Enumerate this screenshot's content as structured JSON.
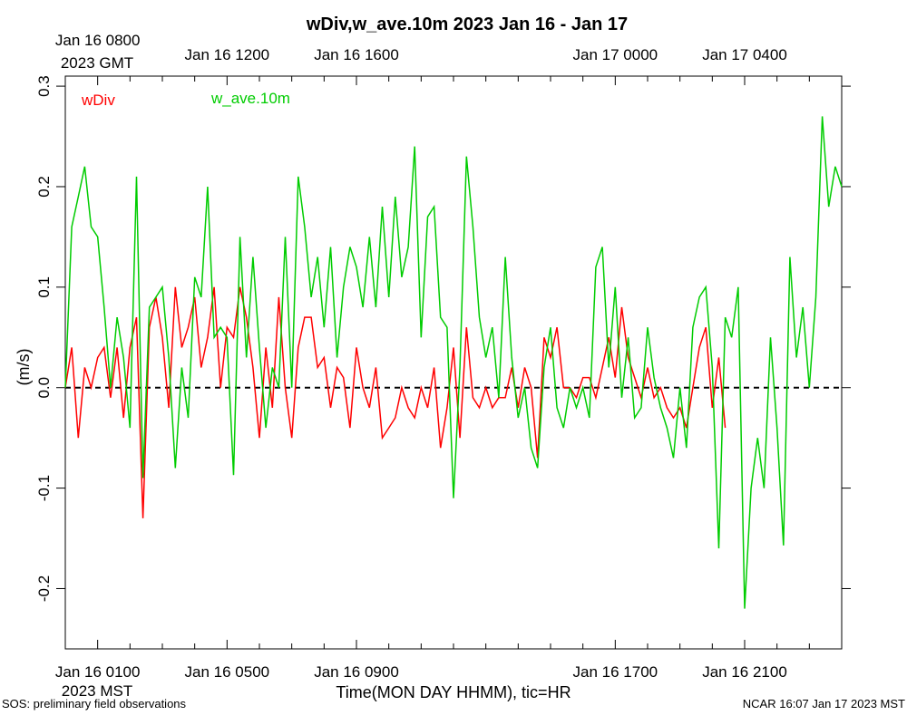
{
  "chart_data": {
    "type": "line",
    "title": "wDiv,w_ave.10m 2023 Jan 16 - Jan 17",
    "x_label": "Time(MON DAY HHMM), tic=HR",
    "y_label": "(m/s)",
    "x_note": "2023 MST",
    "x2_note": "2023 GMT",
    "footer_left": "SOS: preliminary field observations",
    "footer_right": "NCAR 16:07 Jan 17 2023 MST",
    "xlim": [
      0,
      24
    ],
    "ylim": [
      -0.26,
      0.31
    ],
    "reference_line": 0,
    "xticks": [
      {
        "value": 1,
        "label": "Jan 16 0100"
      },
      {
        "value": 5,
        "label": "Jan 16 0500"
      },
      {
        "value": 9,
        "label": "Jan 16 0900"
      },
      {
        "value": 17,
        "label": "Jan 16 1700"
      },
      {
        "value": 21,
        "label": "Jan 16 2100"
      }
    ],
    "x2ticks": [
      {
        "value": 1,
        "label": "Jan 16 0800"
      },
      {
        "value": 5,
        "label": "Jan 16 1200"
      },
      {
        "value": 9,
        "label": "Jan 16 1600"
      },
      {
        "value": 17,
        "label": "Jan 17 0000"
      },
      {
        "value": 21,
        "label": "Jan 17 0400"
      }
    ],
    "xminor_ticks": [
      2,
      3,
      4,
      6,
      7,
      8,
      10,
      11,
      12,
      13,
      14,
      15,
      16,
      18,
      19,
      20,
      22,
      23
    ],
    "yticks": [
      -0.2,
      -0.1,
      {
        "value": 0,
        "label": "0.0"
      },
      0.1,
      0.2,
      0.3
    ],
    "x": [
      0,
      0.2,
      0.4,
      0.6,
      0.8,
      1,
      1.2,
      1.4,
      1.6,
      1.8,
      2,
      2.2,
      2.4,
      2.6,
      2.8,
      3,
      3.2,
      3.4,
      3.6,
      3.8,
      4,
      4.2,
      4.4,
      4.6,
      4.8,
      5,
      5.2,
      5.4,
      5.6,
      5.8,
      6,
      6.2,
      6.4,
      6.6,
      6.8,
      7,
      7.2,
      7.4,
      7.6,
      7.8,
      8,
      8.2,
      8.4,
      8.6,
      8.8,
      9,
      9.2,
      9.4,
      9.6,
      9.8,
      10,
      10.2,
      10.4,
      10.6,
      10.8,
      11,
      11.2,
      11.4,
      11.6,
      11.8,
      12,
      12.2,
      12.4,
      12.6,
      12.8,
      13,
      13.2,
      13.4,
      13.6,
      13.8,
      14,
      14.2,
      14.4,
      14.6,
      14.8,
      15,
      15.2,
      15.4,
      15.6,
      15.8,
      16,
      16.2,
      16.4,
      16.6,
      16.8,
      17,
      17.2,
      17.4,
      17.6,
      17.8,
      18,
      18.2,
      18.4,
      18.6,
      18.8,
      19,
      19.2,
      19.4,
      19.6,
      19.8,
      20,
      20.2,
      20.4,
      20.6,
      20.8,
      21,
      21.2,
      21.4,
      21.6,
      21.8,
      22,
      22.2,
      22.4,
      22.6,
      22.8,
      23,
      23.2,
      23.4,
      23.6,
      23.8,
      24
    ],
    "series": [
      {
        "name": "wDiv",
        "color": "#ff0000",
        "values": [
          0.0,
          0.04,
          -0.05,
          0.02,
          0.0,
          0.03,
          0.04,
          -0.01,
          0.04,
          -0.03,
          0.04,
          0.07,
          -0.13,
          0.06,
          0.09,
          0.05,
          -0.02,
          0.1,
          0.04,
          0.06,
          0.09,
          0.02,
          0.05,
          0.1,
          0.0,
          0.06,
          0.05,
          0.1,
          0.07,
          0.02,
          -0.05,
          0.04,
          -0.02,
          0.09,
          0.0,
          -0.05,
          0.04,
          0.07,
          0.07,
          0.02,
          0.03,
          -0.02,
          0.02,
          0.01,
          -0.04,
          0.04,
          0.0,
          -0.02,
          0.02,
          -0.05,
          -0.04,
          -0.03,
          0.0,
          -0.02,
          -0.03,
          0.0,
          -0.02,
          0.02,
          -0.06,
          -0.02,
          0.04,
          -0.05,
          0.06,
          -0.01,
          -0.02,
          0.0,
          -0.02,
          -0.01,
          -0.01,
          0.02,
          -0.02,
          0.02,
          0.0,
          -0.07,
          0.05,
          0.03,
          0.06,
          0.0,
          0.0,
          -0.01,
          0.01,
          0.01,
          -0.01,
          0.02,
          0.05,
          0.01,
          0.08,
          0.03,
          0.01,
          -0.01,
          0.02,
          -0.01,
          0.0,
          -0.02,
          -0.03,
          -0.02,
          -0.04,
          0.0,
          0.04,
          0.06,
          -0.02,
          0.03,
          -0.04,
          null,
          null,
          null,
          null,
          null,
          null,
          null,
          null,
          null,
          null,
          null,
          null,
          null,
          null,
          null,
          null,
          null,
          null
        ]
      },
      {
        "name": "w_ave.10m",
        "color": "#00cc00",
        "values": [
          0.0,
          0.16,
          0.19,
          0.22,
          0.16,
          0.15,
          0.08,
          0.0,
          0.07,
          0.03,
          -0.04,
          0.21,
          -0.09,
          0.08,
          0.09,
          0.1,
          0.03,
          -0.08,
          0.02,
          -0.03,
          0.11,
          0.09,
          0.2,
          0.05,
          0.06,
          0.05,
          -0.087,
          0.15,
          0.03,
          0.13,
          0.04,
          -0.04,
          0.02,
          0.0,
          0.15,
          0.0,
          0.21,
          0.16,
          0.09,
          0.13,
          0.06,
          0.14,
          0.03,
          0.1,
          0.14,
          0.12,
          0.08,
          0.15,
          0.08,
          0.18,
          0.09,
          0.19,
          0.11,
          0.14,
          0.24,
          0.05,
          0.17,
          0.18,
          0.07,
          0.06,
          -0.11,
          0.02,
          0.23,
          0.16,
          0.07,
          0.03,
          0.06,
          -0.01,
          0.13,
          0.03,
          -0.03,
          0.0,
          -0.06,
          -0.08,
          0.02,
          0.06,
          -0.02,
          -0.04,
          0.0,
          -0.02,
          0.0,
          -0.03,
          0.12,
          0.14,
          0.02,
          0.1,
          -0.01,
          0.05,
          -0.03,
          -0.02,
          0.06,
          0.01,
          -0.02,
          -0.04,
          -0.07,
          0.0,
          -0.06,
          0.06,
          0.09,
          0.1,
          0.02,
          -0.16,
          0.07,
          0.05,
          0.1,
          -0.22,
          -0.1,
          -0.05,
          -0.1,
          0.05,
          -0.04,
          -0.157,
          0.13,
          0.03,
          0.08,
          0.0,
          0.09,
          0.27,
          0.18,
          0.22,
          0.2
        ]
      }
    ]
  }
}
